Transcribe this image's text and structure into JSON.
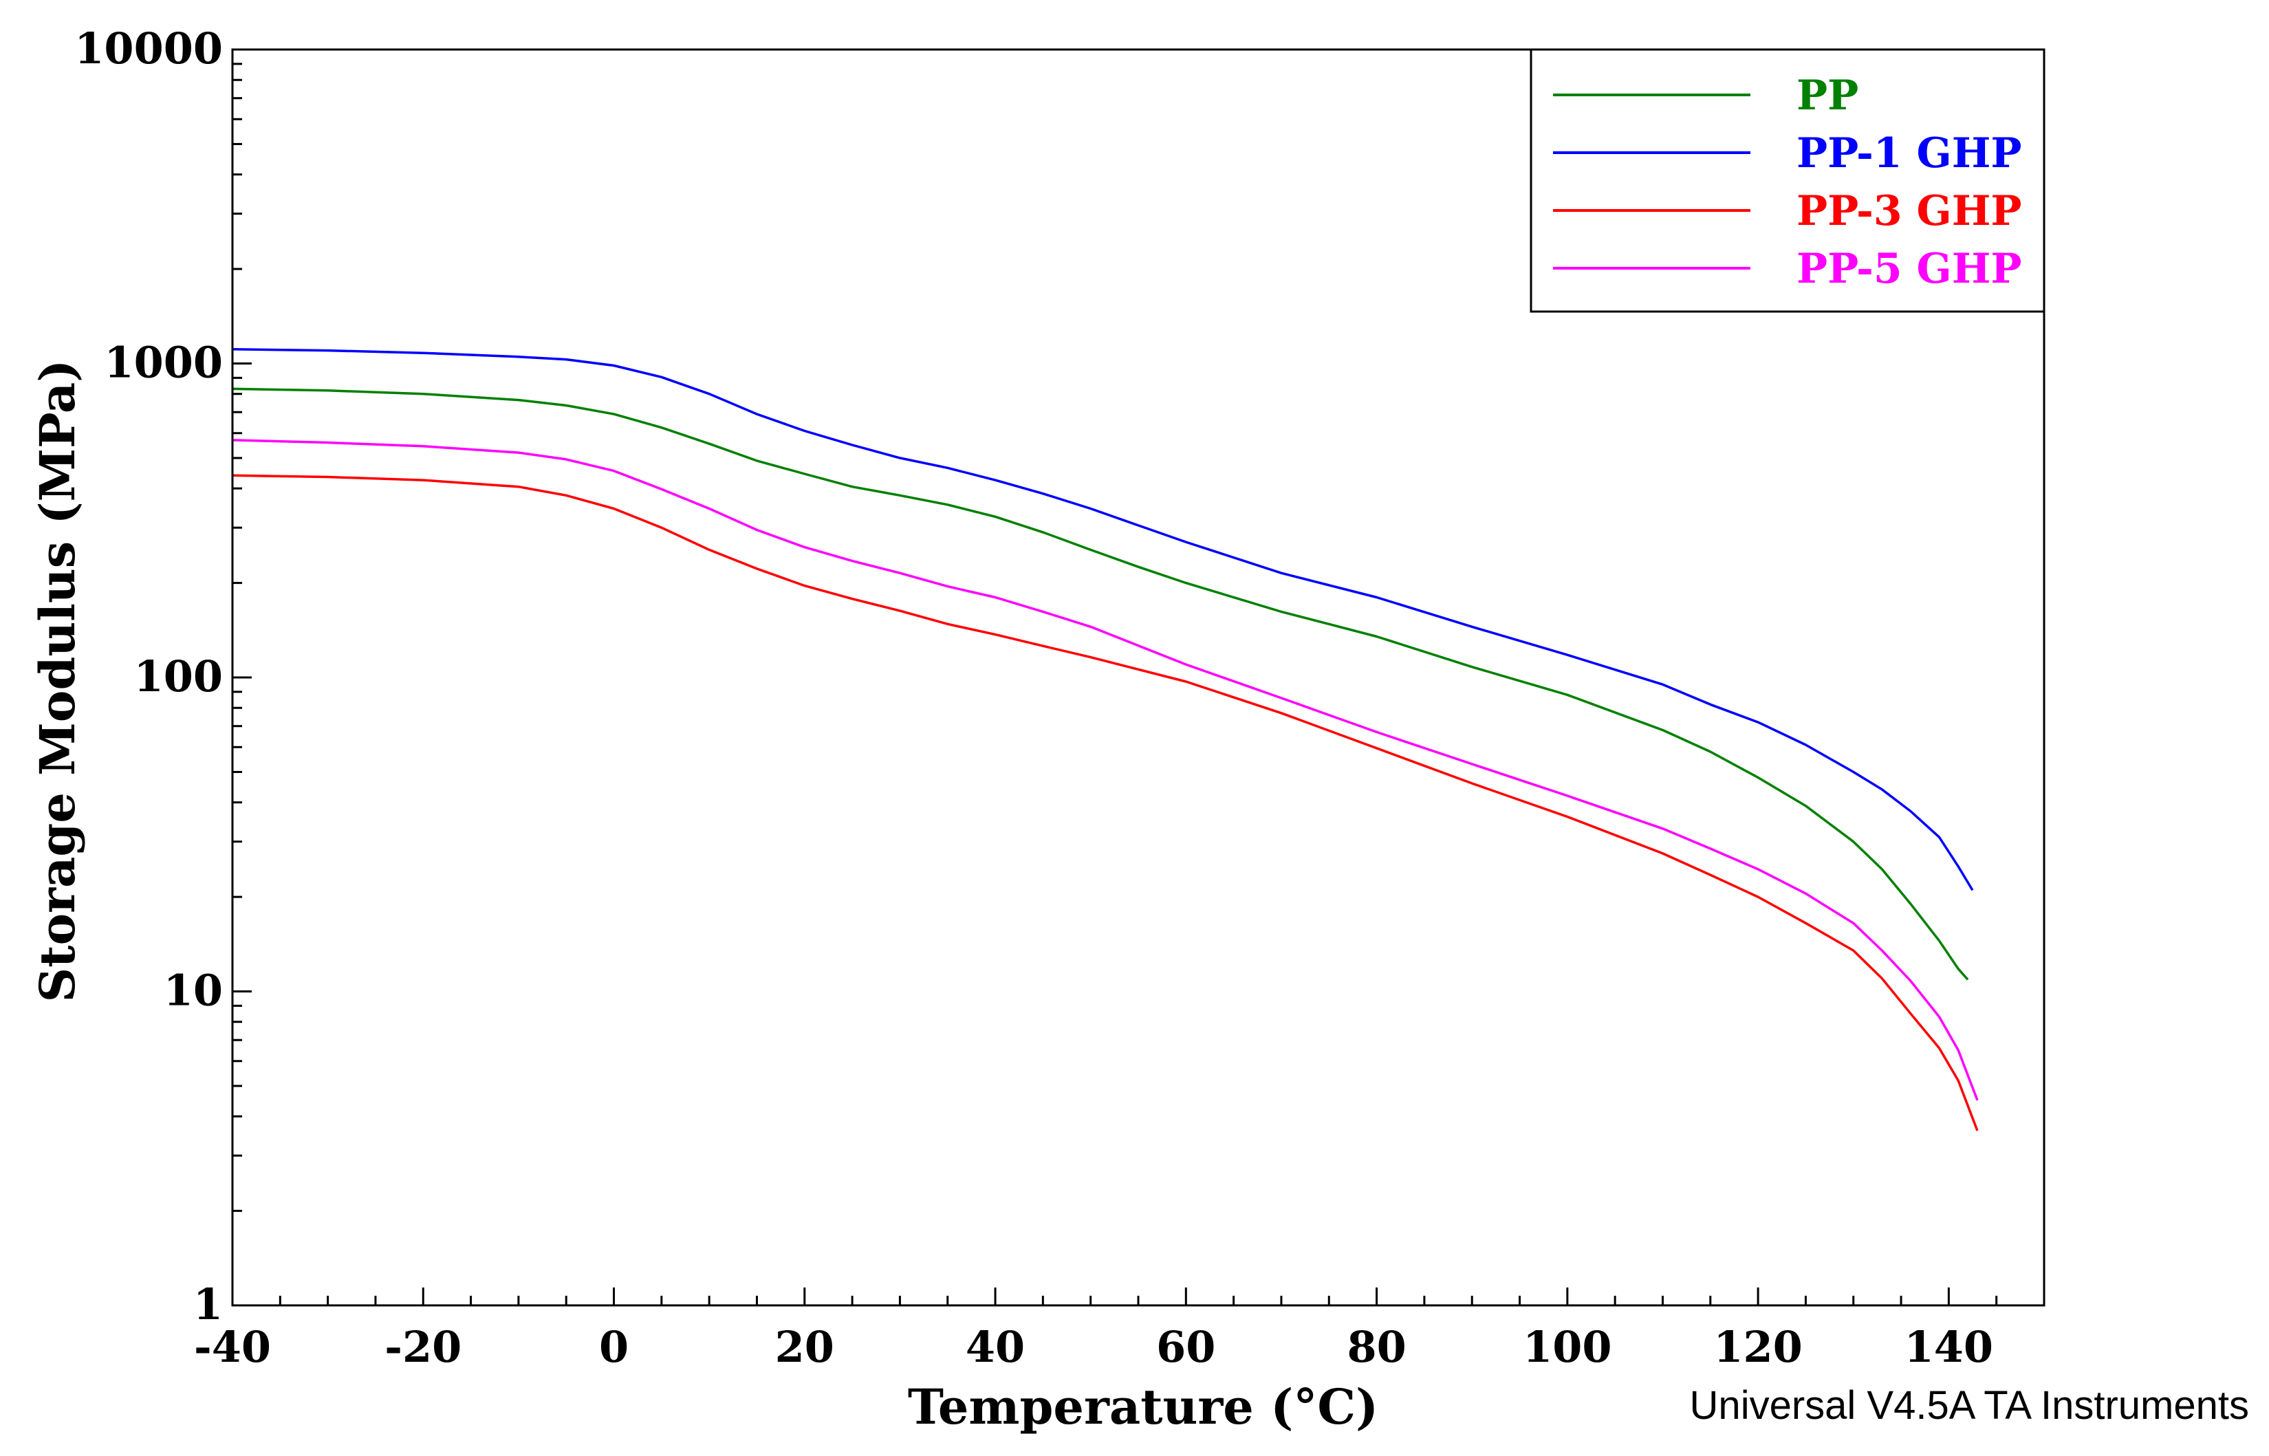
{
  "chart_data": {
    "type": "line",
    "xlabel": "Temperature (°C)",
    "ylabel": "Storage Modulus (MPa)",
    "xlim": [
      -40,
      150
    ],
    "ylim": [
      1,
      10000
    ],
    "yscale": "log",
    "grid": false,
    "legend_position": "top-right",
    "x_ticks": [
      "-40",
      "-20",
      "0",
      "20",
      "40",
      "60",
      "80",
      "100",
      "120",
      "140"
    ],
    "y_ticks": [
      "1",
      "10",
      "100",
      "1000",
      "10000"
    ],
    "series": [
      {
        "name": "PP",
        "color": "#008000",
        "x": [
          -40,
          -30,
          -20,
          -10,
          -5,
          0,
          5,
          10,
          15,
          20,
          25,
          30,
          35,
          40,
          45,
          50,
          55,
          60,
          70,
          80,
          90,
          100,
          110,
          115,
          120,
          125,
          130,
          133,
          136,
          139,
          141,
          142
        ],
        "y": [
          830,
          820,
          800,
          765,
          735,
          690,
          625,
          555,
          490,
          445,
          405,
          380,
          355,
          325,
          290,
          255,
          225,
          200,
          162,
          135,
          108,
          88,
          68,
          58,
          48,
          39,
          30,
          24.5,
          19,
          14.5,
          11.8,
          10.9
        ]
      },
      {
        "name": "PP-1 GHP",
        "color": "#0000ff",
        "x": [
          -40,
          -30,
          -20,
          -10,
          -5,
          0,
          5,
          10,
          15,
          20,
          25,
          30,
          35,
          40,
          45,
          50,
          55,
          60,
          70,
          80,
          90,
          100,
          110,
          115,
          120,
          125,
          130,
          133,
          136,
          139,
          141,
          142.5
        ],
        "y": [
          1110,
          1100,
          1080,
          1050,
          1030,
          985,
          905,
          800,
          690,
          610,
          550,
          500,
          465,
          425,
          385,
          345,
          305,
          270,
          215,
          180,
          145,
          118,
          95,
          82,
          72,
          61,
          50,
          44,
          37.5,
          31,
          25,
          21
        ]
      },
      {
        "name": "PP-3 GHP",
        "color": "#ff0000",
        "x": [
          -40,
          -30,
          -20,
          -10,
          -5,
          0,
          5,
          10,
          15,
          20,
          25,
          30,
          35,
          40,
          45,
          50,
          60,
          70,
          80,
          90,
          100,
          110,
          115,
          120,
          125,
          130,
          133,
          136,
          139,
          141,
          143
        ],
        "y": [
          440,
          435,
          425,
          405,
          380,
          345,
          300,
          255,
          222,
          196,
          178,
          163,
          148,
          137,
          126,
          116,
          97,
          77,
          59.5,
          46,
          36,
          27.5,
          23.5,
          20,
          16.5,
          13.5,
          11,
          8.5,
          6.6,
          5.2,
          3.6
        ]
      },
      {
        "name": "PP-5 GHP",
        "color": "#ff00ff",
        "x": [
          -40,
          -30,
          -20,
          -10,
          -5,
          0,
          5,
          10,
          15,
          20,
          25,
          30,
          35,
          40,
          45,
          50,
          60,
          70,
          80,
          90,
          100,
          110,
          115,
          120,
          125,
          130,
          133,
          136,
          139,
          141,
          143
        ],
        "y": [
          570,
          560,
          545,
          520,
          495,
          455,
          398,
          345,
          295,
          260,
          235,
          215,
          195,
          180,
          162,
          145,
          110,
          86,
          67,
          53,
          42,
          33,
          28.5,
          24.5,
          20.5,
          16.5,
          13.5,
          10.8,
          8.3,
          6.5,
          4.5
        ]
      }
    ]
  },
  "footer": "Universal V4.5A TA Instruments"
}
